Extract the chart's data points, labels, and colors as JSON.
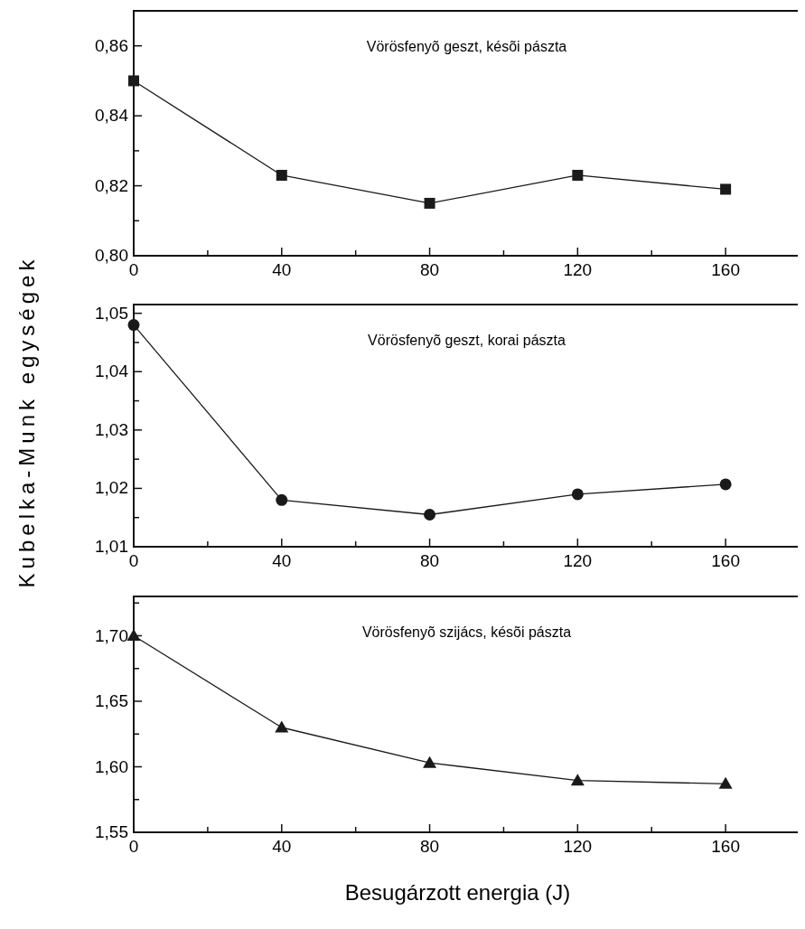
{
  "chart_data": [
    {
      "type": "line",
      "title": "Vörösfenyõ geszt, késõi pászta",
      "x": [
        0,
        40,
        80,
        120,
        160
      ],
      "values": [
        0.85,
        0.823,
        0.815,
        0.823,
        0.819
      ],
      "color": "#1a1a1a",
      "marker": "square",
      "xlim": [
        0,
        180
      ],
      "xticks": [
        0,
        {
          "value": 20,
          "label": null
        },
        40,
        {
          "value": 60,
          "label": null
        },
        80,
        {
          "value": 100,
          "label": null
        },
        120,
        {
          "value": 140,
          "label": null
        },
        160
      ],
      "ylim": [
        0.8,
        0.87
      ],
      "yticks": [
        {
          "value": 0.8,
          "label": "0,80"
        },
        {
          "value": 0.81,
          "label": null
        },
        {
          "value": 0.82,
          "label": "0,82"
        },
        {
          "value": 0.83,
          "label": null
        },
        {
          "value": 0.84,
          "label": "0,84"
        },
        {
          "value": 0.85,
          "label": null
        },
        {
          "value": 0.86,
          "label": "0,86"
        }
      ]
    },
    {
      "type": "line",
      "title": "Vörösfenyõ geszt, korai pászta",
      "ylabel": "Kubelka-Munk egységek",
      "x": [
        0,
        40,
        80,
        120,
        160
      ],
      "values": [
        1.048,
        1.018,
        1.0155,
        1.019,
        1.0207
      ],
      "color": "#1a1a1a",
      "marker": "circle",
      "xlim": [
        0,
        180
      ],
      "xticks": [
        0,
        {
          "value": 20,
          "label": null
        },
        40,
        {
          "value": 60,
          "label": null
        },
        80,
        {
          "value": 100,
          "label": null
        },
        120,
        {
          "value": 140,
          "label": null
        },
        160
      ],
      "ylim": [
        1.01,
        1.0515
      ],
      "yticks": [
        {
          "value": 1.01,
          "label": "1,01"
        },
        {
          "value": 1.015,
          "label": null
        },
        {
          "value": 1.02,
          "label": "1,02"
        },
        {
          "value": 1.025,
          "label": null
        },
        {
          "value": 1.03,
          "label": "1,03"
        },
        {
          "value": 1.035,
          "label": null
        },
        {
          "value": 1.04,
          "label": "1,04"
        },
        {
          "value": 1.045,
          "label": null
        },
        {
          "value": 1.05,
          "label": "1,05"
        }
      ]
    },
    {
      "type": "line",
      "title": "Vörösfenyõ szijács, késõi pászta",
      "xlabel": "Besugárzott energia (J)",
      "x": [
        0,
        40,
        80,
        120,
        160
      ],
      "values": [
        1.7,
        1.63,
        1.603,
        1.5895,
        1.587
      ],
      "color": "#1a1a1a",
      "marker": "triangle",
      "xlim": [
        0,
        180
      ],
      "xticks": [
        0,
        {
          "value": 20,
          "label": null
        },
        40,
        {
          "value": 60,
          "label": null
        },
        80,
        {
          "value": 100,
          "label": null
        },
        120,
        {
          "value": 140,
          "label": null
        },
        160
      ],
      "ylim": [
        1.55,
        1.73
      ],
      "yticks": [
        {
          "value": 1.55,
          "label": "1,55"
        },
        {
          "value": 1.575,
          "label": null
        },
        {
          "value": 1.6,
          "label": "1,60"
        },
        {
          "value": 1.625,
          "label": null
        },
        {
          "value": 1.65,
          "label": "1,65"
        },
        {
          "value": 1.675,
          "label": null
        },
        {
          "value": 1.7,
          "label": "1,70"
        },
        {
          "value": 1.725,
          "label": null
        }
      ]
    }
  ]
}
